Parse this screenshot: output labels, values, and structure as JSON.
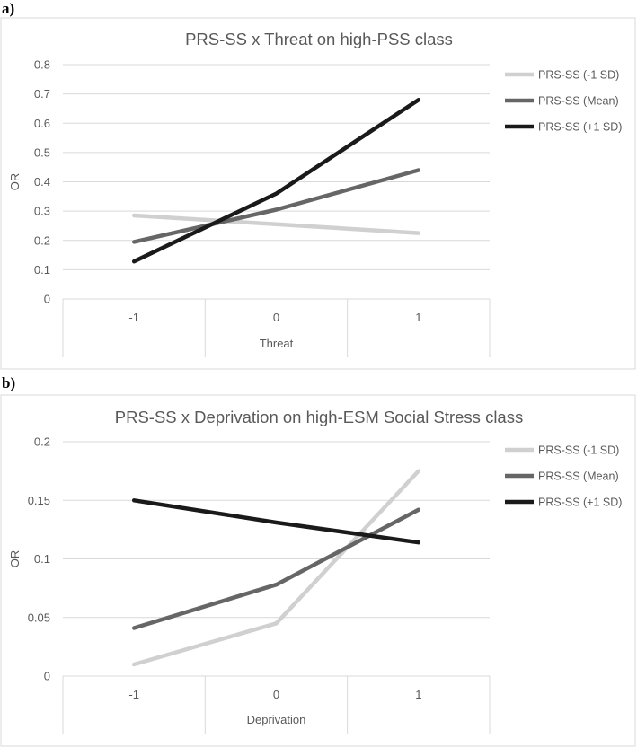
{
  "panels": [
    {
      "label": "a)"
    },
    {
      "label": "b)"
    }
  ],
  "chart_data": [
    {
      "type": "line",
      "title": "PRS-SS x Threat on high-PSS class",
      "xlabel": "Threat",
      "ylabel": "OR",
      "categories": [
        "-1",
        "0",
        "1"
      ],
      "ylim": [
        0,
        0.8
      ],
      "yticks": [
        "0",
        "0.1",
        "0.2",
        "0.3",
        "0.4",
        "0.5",
        "0.6",
        "0.7",
        "0.8"
      ],
      "grid": true,
      "legend": "right",
      "series": [
        {
          "name": "PRS-SS (-1 SD)",
          "values": [
            0.285,
            0.255,
            0.225
          ],
          "color": "#d0d0d0"
        },
        {
          "name": "PRS-SS (Mean)",
          "values": [
            0.195,
            0.305,
            0.44
          ],
          "color": "#666666"
        },
        {
          "name": "PRS-SS (+1 SD)",
          "values": [
            0.128,
            0.36,
            0.68
          ],
          "color": "#1a1a1a"
        }
      ]
    },
    {
      "type": "line",
      "title": "PRS-SS x Deprivation on high-ESM Social Stress class",
      "xlabel": "Deprivation",
      "ylabel": "OR",
      "categories": [
        "-1",
        "0",
        "1"
      ],
      "ylim": [
        0,
        0.2
      ],
      "yticks": [
        "0",
        "0.05",
        "0.1",
        "0.15",
        "0.2"
      ],
      "grid": true,
      "legend": "right",
      "series": [
        {
          "name": "PRS-SS (-1 SD)",
          "values": [
            0.01,
            0.045,
            0.175
          ],
          "color": "#d0d0d0"
        },
        {
          "name": "PRS-SS (Mean)",
          "values": [
            0.041,
            0.078,
            0.142
          ],
          "color": "#666666"
        },
        {
          "name": "PRS-SS (+1 SD)",
          "values": [
            0.15,
            0.131,
            0.114
          ],
          "color": "#1a1a1a"
        }
      ]
    }
  ]
}
